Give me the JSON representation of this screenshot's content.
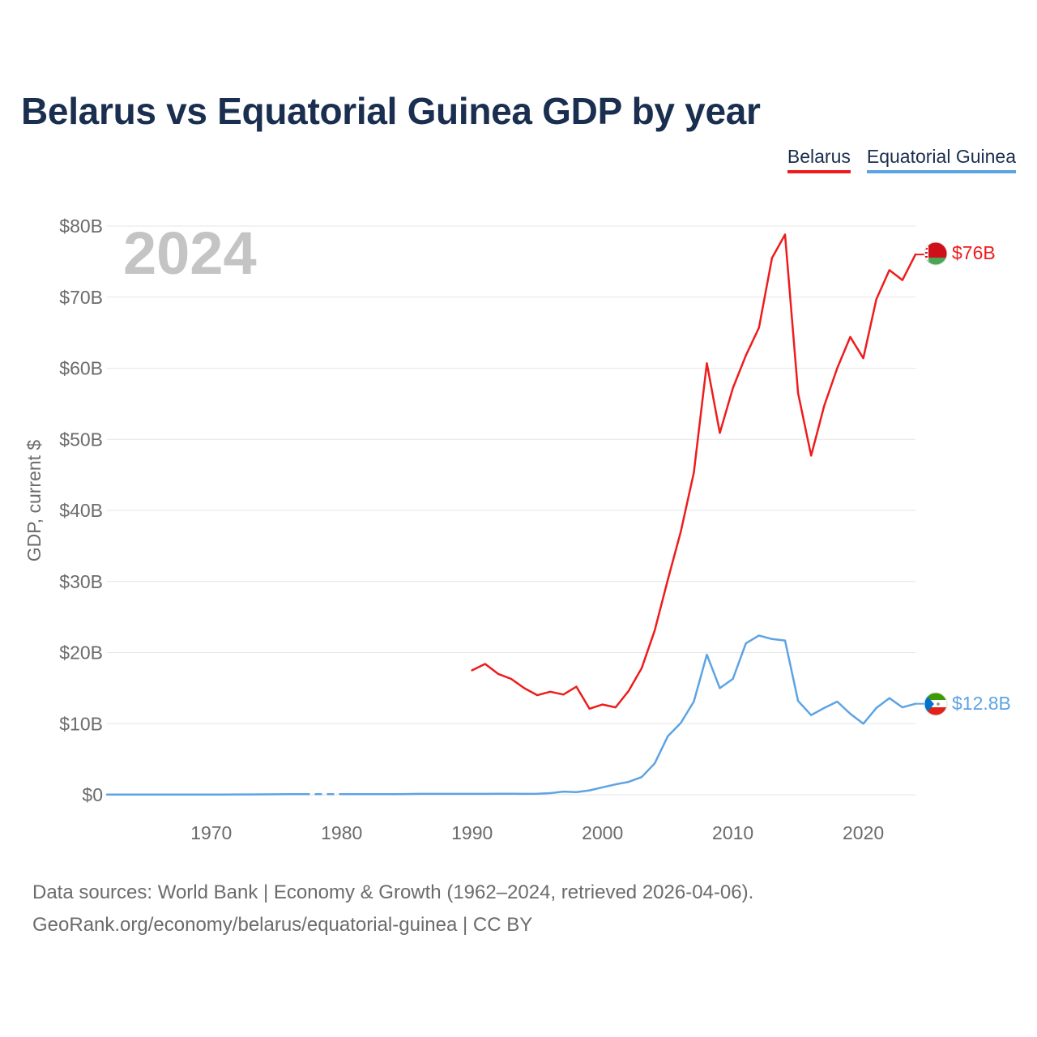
{
  "chart_data": {
    "type": "line",
    "title": "Belarus vs Equatorial Guinea GDP by year",
    "ylabel": "GDP, current $",
    "xlabel": "",
    "year_label": "2024",
    "x_range": [
      1962,
      2024
    ],
    "ylim": [
      0,
      80
    ],
    "y_ticks": [
      {
        "value": 0,
        "label": "$0"
      },
      {
        "value": 10,
        "label": "$10B"
      },
      {
        "value": 20,
        "label": "$20B"
      },
      {
        "value": 30,
        "label": "$30B"
      },
      {
        "value": 40,
        "label": "$40B"
      },
      {
        "value": 50,
        "label": "$50B"
      },
      {
        "value": 60,
        "label": "$60B"
      },
      {
        "value": 70,
        "label": "$70B"
      },
      {
        "value": 80,
        "label": "$80B"
      }
    ],
    "x_ticks": [
      1970,
      1980,
      1990,
      2000,
      2010,
      2020
    ],
    "series": [
      {
        "name": "Belarus",
        "color": "#ee1c1c",
        "end_label": "$76B",
        "flag_icon": "belarus-flag-icon",
        "x": [
          1990,
          1991,
          1992,
          1993,
          1994,
          1995,
          1996,
          1997,
          1998,
          1999,
          2000,
          2001,
          2002,
          2003,
          2004,
          2005,
          2006,
          2007,
          2008,
          2009,
          2010,
          2011,
          2012,
          2013,
          2014,
          2015,
          2016,
          2017,
          2018,
          2019,
          2020,
          2021,
          2022,
          2023,
          2024
        ],
        "values": [
          17.5,
          18.4,
          17.0,
          16.3,
          15.0,
          14.0,
          14.5,
          14.1,
          15.2,
          12.1,
          12.7,
          12.3,
          14.6,
          17.8,
          23.1,
          30.2,
          37.0,
          45.3,
          60.7,
          50.9,
          57.2,
          61.8,
          65.7,
          75.5,
          78.8,
          56.5,
          47.7,
          54.7,
          60.0,
          64.4,
          61.4,
          69.7,
          73.8,
          72.4,
          76.0
        ]
      },
      {
        "name": "Equatorial Guinea",
        "color": "#5da3e3",
        "end_label": "$12.8B",
        "flag_icon": "equatorial-guinea-flag-icon",
        "gap": [
          1977,
          1980
        ],
        "x": [
          1962,
          1963,
          1964,
          1965,
          1966,
          1967,
          1968,
          1969,
          1970,
          1971,
          1972,
          1973,
          1974,
          1975,
          1976,
          1977,
          1980,
          1981,
          1982,
          1983,
          1984,
          1985,
          1986,
          1987,
          1988,
          1989,
          1990,
          1991,
          1992,
          1993,
          1994,
          1995,
          1996,
          1997,
          1998,
          1999,
          2000,
          2001,
          2002,
          2003,
          2004,
          2005,
          2006,
          2007,
          2008,
          2009,
          2010,
          2011,
          2012,
          2013,
          2014,
          2015,
          2016,
          2017,
          2018,
          2019,
          2020,
          2021,
          2022,
          2023,
          2024
        ],
        "values": [
          0.02,
          0.02,
          0.02,
          0.02,
          0.03,
          0.03,
          0.03,
          0.03,
          0.03,
          0.03,
          0.04,
          0.05,
          0.06,
          0.07,
          0.08,
          0.09,
          0.09,
          0.08,
          0.08,
          0.08,
          0.08,
          0.1,
          0.12,
          0.12,
          0.13,
          0.12,
          0.13,
          0.13,
          0.15,
          0.15,
          0.12,
          0.14,
          0.23,
          0.44,
          0.37,
          0.62,
          1.05,
          1.46,
          1.81,
          2.48,
          4.41,
          8.22,
          10.1,
          13.1,
          19.7,
          15.0,
          16.3,
          21.3,
          22.4,
          21.9,
          21.7,
          13.2,
          11.2,
          12.2,
          13.1,
          11.4,
          10.0,
          12.2,
          13.6,
          12.3,
          12.8
        ]
      }
    ]
  },
  "legend": {
    "items": [
      "Belarus",
      "Equatorial Guinea"
    ]
  },
  "footer": {
    "line1": "Data sources: World Bank | Economy & Growth (1962–2024, retrieved 2026-04-06).",
    "line2": "GeoRank.org/economy/belarus/equatorial-guinea | CC BY"
  },
  "colors": {
    "title": "#1a2e4f",
    "axis_text": "#6b6b6b",
    "grid": "#e6e6e6",
    "year_watermark": "#c4c4c4"
  }
}
